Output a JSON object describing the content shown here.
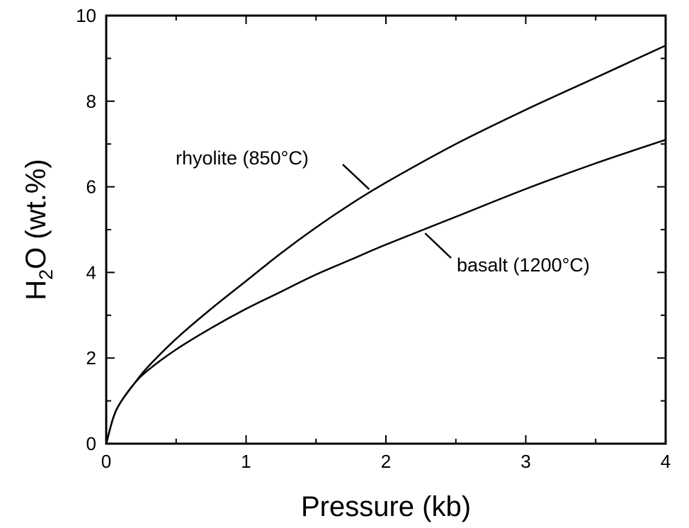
{
  "chart_data": {
    "type": "line",
    "title": "",
    "xlabel": "Pressure (kb)",
    "ylabel": {
      "main": "H",
      "subscript": "2",
      "rest": "O (wt.%)"
    },
    "xlim": [
      0,
      4
    ],
    "ylim": [
      0,
      10
    ],
    "xticks": [
      "0",
      "1",
      "2",
      "3",
      "4"
    ],
    "yticks": [
      "0",
      "2",
      "4",
      "6",
      "8",
      "10"
    ],
    "grid": false,
    "legend": "none",
    "line_color": "#000000",
    "series": [
      {
        "name": "rhyolite (850°C)",
        "x": [
          0,
          0.05,
          0.1,
          0.2,
          0.3,
          0.5,
          0.75,
          1.0,
          1.25,
          1.5,
          1.75,
          2.0,
          2.5,
          3.0,
          3.5,
          4.0
        ],
        "y": [
          0,
          0.6,
          0.95,
          1.4,
          1.8,
          2.45,
          3.15,
          3.8,
          4.45,
          5.05,
          5.6,
          6.1,
          7.0,
          7.8,
          8.55,
          9.3
        ]
      },
      {
        "name": "basalt (1200°C)",
        "x": [
          0,
          0.05,
          0.1,
          0.2,
          0.3,
          0.5,
          0.75,
          1.0,
          1.25,
          1.5,
          1.75,
          2.0,
          2.5,
          3.0,
          3.5,
          4.0
        ],
        "y": [
          0,
          0.6,
          0.95,
          1.4,
          1.72,
          2.2,
          2.7,
          3.15,
          3.55,
          3.95,
          4.3,
          4.65,
          5.3,
          5.95,
          6.55,
          7.1
        ]
      }
    ],
    "annotations": [
      {
        "text": "rhyolite (850°C)",
        "target_series": 0,
        "target_x": 1.88
      },
      {
        "text": "basalt (1200°C)",
        "target_series": 1,
        "target_x": 2.28
      }
    ]
  }
}
